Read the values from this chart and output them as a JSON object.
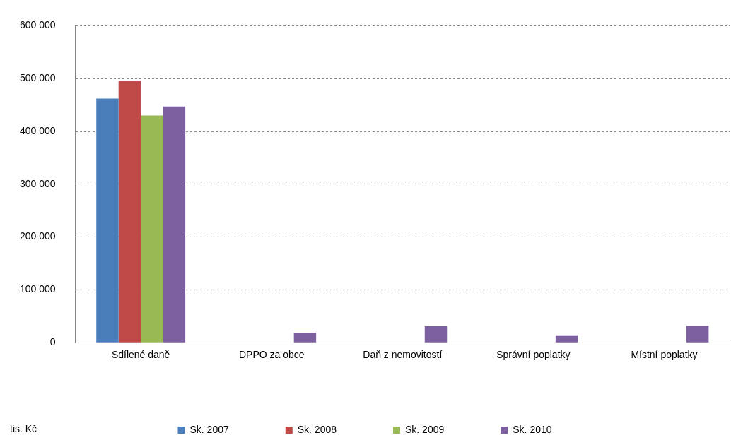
{
  "chart_data": {
    "type": "bar",
    "categories": [
      "Sdílené daně",
      "DPPO za obce",
      "Daň z nemovitostí",
      "Správní poplatky",
      "Místní poplatky"
    ],
    "series": [
      {
        "name": "Sk. 2007",
        "color": "#4a7ebb",
        "values": [
          462000,
          null,
          null,
          null,
          null
        ]
      },
      {
        "name": "Sk. 2008",
        "color": "#be4b48",
        "values": [
          495000,
          null,
          null,
          null,
          null
        ]
      },
      {
        "name": "Sk. 2009",
        "color": "#98b954",
        "values": [
          430000,
          null,
          null,
          null,
          null
        ]
      },
      {
        "name": "Sk. 2010",
        "color": "#7d60a0",
        "values": [
          447000,
          19000,
          31000,
          14000,
          32000
        ]
      }
    ],
    "ylim": [
      0,
      600000
    ],
    "yticks": [
      {
        "value": 0,
        "label": "0"
      },
      {
        "value": 100000,
        "label": "100 000"
      },
      {
        "value": 200000,
        "label": "200 000"
      },
      {
        "value": 300000,
        "label": "300 000"
      },
      {
        "value": 400000,
        "label": "400 000"
      },
      {
        "value": 500000,
        "label": "500 000"
      },
      {
        "value": 600000,
        "label": "600 000"
      }
    ],
    "grid": "y",
    "legend": "bottom",
    "annotations": [
      "tis. Kč"
    ]
  }
}
